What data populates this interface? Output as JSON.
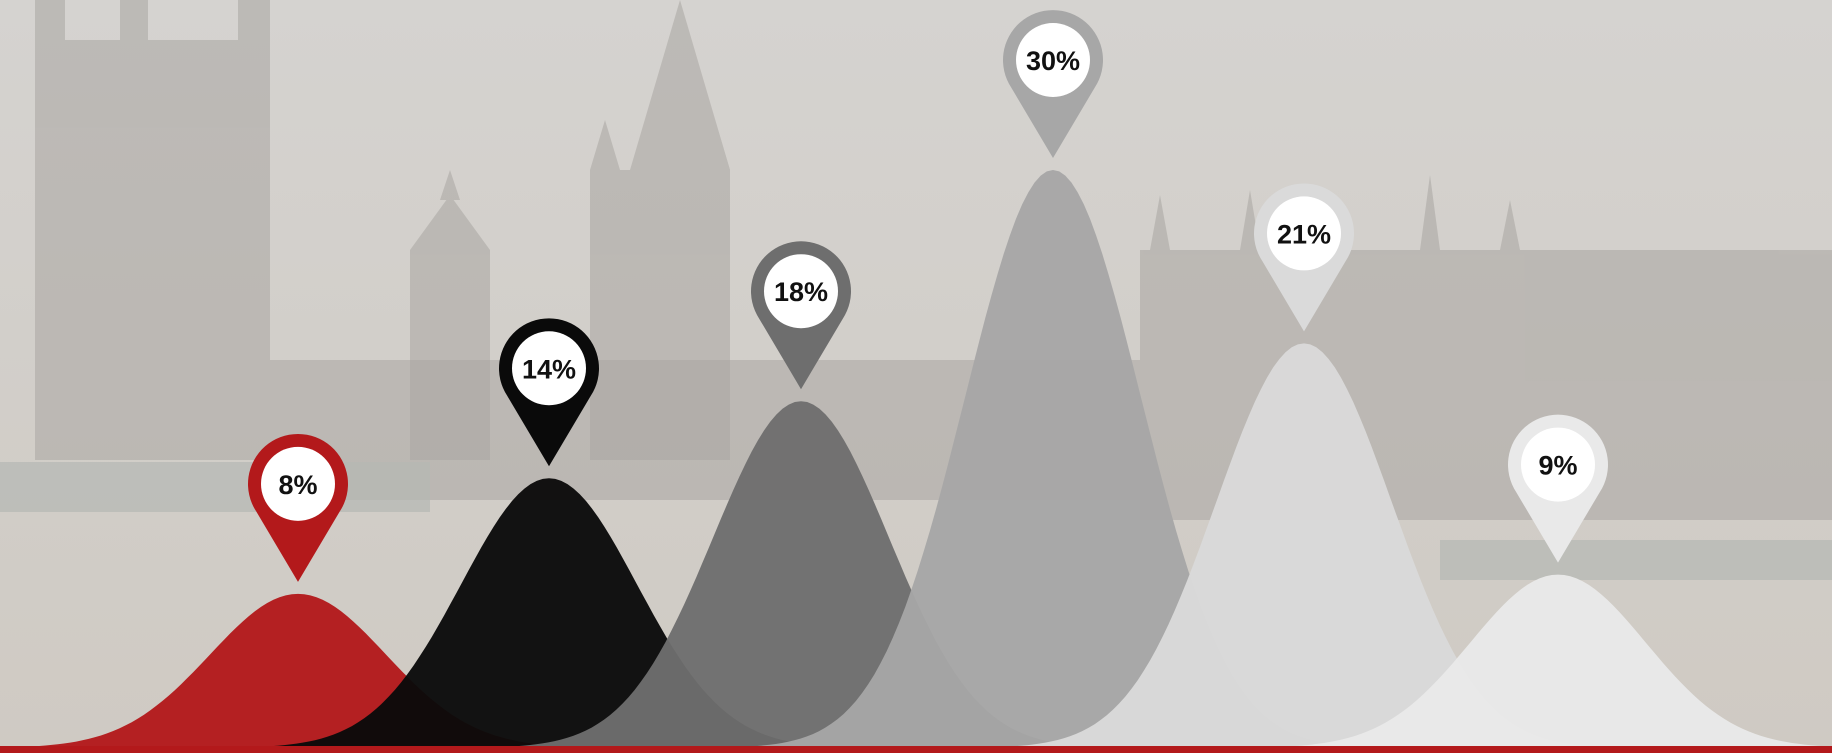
{
  "chart_data": {
    "type": "area",
    "title": "",
    "xlabel": "",
    "ylabel": "",
    "ylim": [
      0,
      30
    ],
    "grid": false,
    "legend": "none",
    "series": [
      {
        "value": 8,
        "label": "8%",
        "color": "#b3191b"
      },
      {
        "value": 14,
        "label": "14%",
        "color": "#0a0a0a"
      },
      {
        "value": 18,
        "label": "18%",
        "color": "#6e6e6e"
      },
      {
        "value": 30,
        "label": "30%",
        "color": "#a7a7a7"
      },
      {
        "value": 21,
        "label": "21%",
        "color": "#dadada"
      },
      {
        "value": 9,
        "label": "9%",
        "color": "#e9e9e9"
      }
    ]
  },
  "colors": {
    "sky_top": "#d5d3d0",
    "sky_bottom": "#cfcac3",
    "building": "#a9a6a2",
    "bridge": "#b5b8b4",
    "bottom_bar": "#b3191b",
    "pin_inner": "#ffffff"
  }
}
